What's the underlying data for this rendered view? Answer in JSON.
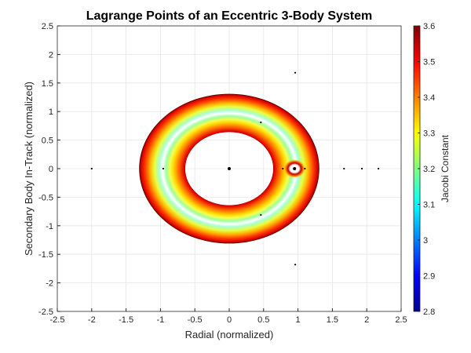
{
  "chart_data": {
    "type": "contour",
    "title": "Lagrange Points of an Eccentric 3-Body System",
    "xlabel": "Radial (normalized)",
    "ylabel": "Secondary Body In-Track (normalized)",
    "xlim": [
      -2.5,
      2.5
    ],
    "ylim": [
      -2.5,
      2.5
    ],
    "xticks": [
      "-2.5",
      "-2",
      "-1.5",
      "-1",
      "-0.5",
      "0",
      "0.5",
      "1",
      "1.5",
      "2",
      "2.5"
    ],
    "yticks": [
      "-2.5",
      "-2",
      "-1.5",
      "-1",
      "-0.5",
      "0",
      "0.5",
      "1",
      "1.5",
      "2",
      "2.5"
    ],
    "grid": true,
    "colorbar": {
      "label": "Jacobi Constant",
      "range": [
        2.8,
        3.6
      ],
      "ticks": [
        "2.8",
        "2.9",
        "3",
        "3.1",
        "3.2",
        "3.3",
        "3.4",
        "3.5",
        "3.6"
      ],
      "colormap": "jet"
    },
    "contour_region": {
      "inner_radius": 0.64,
      "outer_radius": 1.31,
      "center": [
        0,
        0
      ]
    },
    "primary_body": {
      "x": 0,
      "y": 0
    },
    "secondary_body": {
      "x": 0.95,
      "y": 0
    },
    "points": [
      {
        "x": -2.0,
        "y": 0
      },
      {
        "x": -0.96,
        "y": 0
      },
      {
        "x": 0.78,
        "y": 0
      },
      {
        "x": 1.1,
        "y": 0
      },
      {
        "x": 1.67,
        "y": 0
      },
      {
        "x": 1.93,
        "y": 0
      },
      {
        "x": 2.17,
        "y": 0
      },
      {
        "x": 0.46,
        "y": 0.81
      },
      {
        "x": 0.46,
        "y": -0.81
      },
      {
        "x": 0.96,
        "y": 1.68
      },
      {
        "x": 0.96,
        "y": -1.68
      }
    ]
  }
}
